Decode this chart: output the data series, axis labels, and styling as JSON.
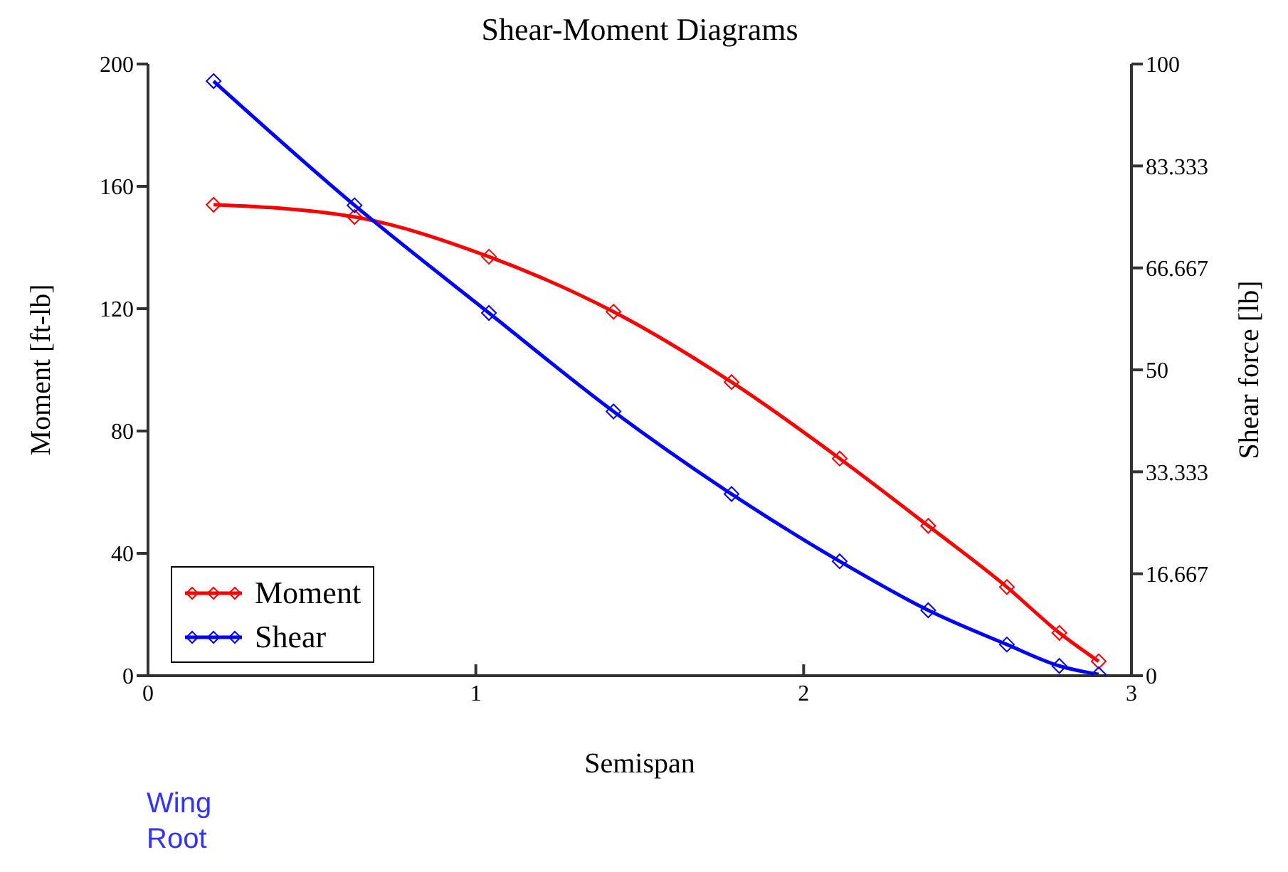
{
  "chart_data": {
    "type": "line",
    "title": "Shear-Moment Diagrams",
    "xlabel": "Semispan",
    "ylabel": "Moment [ft-lb]",
    "y2label": "Shear force [lb]",
    "annotations": [
      "Wing Root"
    ],
    "series": [
      {
        "name": "Moment",
        "color": "#ff0000",
        "x": [
          0.2,
          0.63,
          1.04,
          1.42,
          1.78,
          2.11,
          2.38,
          2.62,
          2.78,
          2.9
        ],
        "values": [
          154,
          150,
          137,
          119,
          96,
          71,
          49,
          29,
          14,
          4.7
        ]
      },
      {
        "name": "Shear",
        "color": "#0000ff",
        "axis": "y2",
        "x": [
          0.2,
          0.63,
          1.04,
          1.42,
          1.78,
          2.11,
          2.38,
          2.62,
          2.78,
          2.9
        ],
        "values": [
          97.2,
          76.9,
          59.3,
          43.2,
          29.7,
          18.7,
          10.7,
          5.1,
          1.6,
          0.2
        ]
      }
    ],
    "xlim": [
      0,
      3
    ],
    "xticks": [
      0,
      1,
      2,
      3
    ],
    "ylim": [
      0,
      200
    ],
    "yticks": [
      0,
      40,
      80,
      120,
      160,
      200
    ],
    "y2lim": [
      0,
      100
    ],
    "y2ticks": [
      0,
      {
        "value": 16.667,
        "label": "16.667"
      },
      {
        "value": 33.333,
        "label": "33.333"
      },
      50,
      {
        "value": 66.667,
        "label": "66.667"
      },
      {
        "value": 83.333,
        "label": "83.333"
      },
      100
    ],
    "grid": false,
    "legend": "bottom left",
    "marker": "diamond",
    "line_style": "solid"
  }
}
